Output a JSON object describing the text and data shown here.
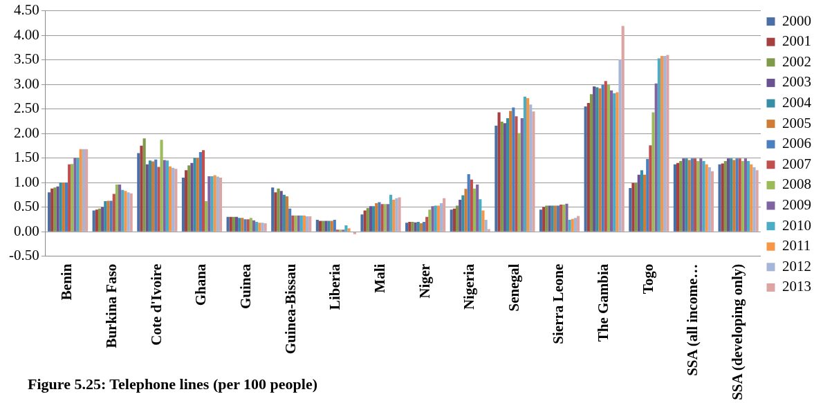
{
  "chart_data": {
    "type": "bar",
    "categories": [
      "Benin",
      "Burkina Faso",
      "Cote d'Ivoire",
      "Ghana",
      "Guinea",
      "Guinea-Bissau",
      "Liberia",
      "Mali",
      "Niger",
      "Nigeria",
      "Senegal",
      "Sierra Leone",
      "The Gambia",
      "Togo",
      "SSA (all income…",
      "SSA (developing only)"
    ],
    "series": [
      {
        "name": "2000",
        "color": "#4a6fa5",
        "values": [
          0.8,
          0.43,
          1.6,
          1.1,
          0.3,
          0.9,
          0.24,
          0.35,
          0.18,
          0.45,
          2.16,
          0.45,
          2.55,
          0.89,
          1.37,
          1.37
        ]
      },
      {
        "name": "2001",
        "color": "#a5403e",
        "values": [
          0.88,
          0.45,
          1.75,
          1.25,
          0.3,
          0.8,
          0.22,
          0.43,
          0.2,
          0.47,
          2.43,
          0.5,
          2.62,
          0.99,
          1.4,
          1.39
        ]
      },
      {
        "name": "2002",
        "color": "#7f9a48",
        "values": [
          0.9,
          0.47,
          1.9,
          1.35,
          0.3,
          0.88,
          0.22,
          0.48,
          0.2,
          0.53,
          2.24,
          0.53,
          2.8,
          0.99,
          1.44,
          1.44
        ]
      },
      {
        "name": "2003",
        "color": "#6a5290",
        "values": [
          0.92,
          0.5,
          1.37,
          1.4,
          0.3,
          0.83,
          0.22,
          0.52,
          0.19,
          0.65,
          2.21,
          0.53,
          2.96,
          1.16,
          1.49,
          1.49
        ]
      },
      {
        "name": "2004",
        "color": "#378ea5",
        "values": [
          1.0,
          0.62,
          1.45,
          1.5,
          0.28,
          0.75,
          0.22,
          0.52,
          0.2,
          0.74,
          2.31,
          0.53,
          2.94,
          1.25,
          1.49,
          1.49
        ]
      },
      {
        "name": "2005",
        "color": "#d07c35",
        "values": [
          1.0,
          0.63,
          1.43,
          1.5,
          0.28,
          0.72,
          0.22,
          0.58,
          0.17,
          0.87,
          2.46,
          0.53,
          2.92,
          1.16,
          1.46,
          1.46
        ]
      },
      {
        "name": "2006",
        "color": "#4b7fc0",
        "values": [
          1.0,
          0.63,
          1.47,
          1.62,
          0.25,
          0.47,
          0.24,
          0.6,
          0.2,
          1.17,
          2.53,
          0.53,
          2.99,
          1.48,
          1.49,
          1.49
        ]
      },
      {
        "name": "2007",
        "color": "#c0504d",
        "values": [
          1.37,
          0.77,
          1.32,
          1.66,
          0.25,
          0.33,
          0.04,
          0.56,
          0.3,
          1.06,
          2.35,
          0.55,
          3.07,
          1.76,
          1.49,
          1.49
        ]
      },
      {
        "name": "2008",
        "color": "#9bbb59",
        "values": [
          1.38,
          0.96,
          1.87,
          0.62,
          0.28,
          0.33,
          0.04,
          0.56,
          0.45,
          0.88,
          2.01,
          0.55,
          2.99,
          2.43,
          1.44,
          1.44
        ]
      },
      {
        "name": "2009",
        "color": "#8064a2",
        "values": [
          1.5,
          0.96,
          1.46,
          1.13,
          0.23,
          0.33,
          0.04,
          0.56,
          0.52,
          0.96,
          2.31,
          0.57,
          2.88,
          3.02,
          1.49,
          1.49
        ]
      },
      {
        "name": "2010",
        "color": "#4bacc6",
        "values": [
          1.5,
          0.85,
          1.45,
          1.13,
          0.2,
          0.33,
          0.13,
          0.75,
          0.53,
          0.66,
          2.75,
          0.24,
          2.82,
          3.53,
          1.44,
          1.44
        ]
      },
      {
        "name": "2011",
        "color": "#f79646",
        "values": [
          1.68,
          0.83,
          1.33,
          1.15,
          0.18,
          0.33,
          0.07,
          0.65,
          0.53,
          0.43,
          2.72,
          0.26,
          2.84,
          3.58,
          1.37,
          1.37
        ]
      },
      {
        "name": "2012",
        "color": "#a6b6d9",
        "values": [
          1.68,
          0.8,
          1.3,
          1.12,
          0.18,
          0.31,
          null,
          0.68,
          0.58,
          0.24,
          2.59,
          0.28,
          3.51,
          3.58,
          1.31,
          1.31
        ]
      },
      {
        "name": "2013",
        "color": "#dca5a4",
        "values": [
          1.68,
          0.78,
          1.28,
          1.1,
          0.17,
          0.31,
          -0.05,
          0.7,
          0.68,
          0.05,
          2.45,
          0.32,
          4.19,
          3.6,
          1.23,
          1.25
        ]
      }
    ],
    "ylim": [
      -0.5,
      4.5
    ],
    "yticks": [
      {
        "value": -0.5,
        "label": "-0.50"
      },
      {
        "value": 0,
        "label": "0.00"
      },
      {
        "value": 0.5,
        "label": "0.50"
      },
      {
        "value": 1,
        "label": "1.00"
      },
      {
        "value": 1.5,
        "label": "1.50"
      },
      {
        "value": 2,
        "label": "2.00"
      },
      {
        "value": 2.5,
        "label": "2.50"
      },
      {
        "value": 3,
        "label": "3.00"
      },
      {
        "value": 3.5,
        "label": "3.50"
      },
      {
        "value": 4,
        "label": "4.00"
      },
      {
        "value": 4.5,
        "label": "4.50"
      }
    ],
    "grid": "y",
    "legend": "right",
    "annotations": [
      "Figure 5.25: Telephone lines (per 100 people)"
    ]
  }
}
